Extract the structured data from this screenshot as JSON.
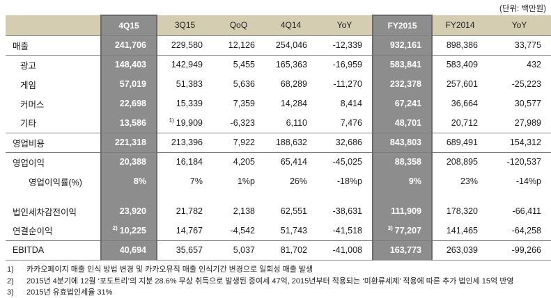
{
  "unit_label": "(단위: 백만원)",
  "colors": {
    "header_bg": "#d5cdb2",
    "highlight_bg": "#8d8d8d",
    "highlight_border": "#6a6a6a",
    "line": "#7f7f7f",
    "text": "#1a1a1a"
  },
  "table": {
    "columns": [
      {
        "label": "",
        "highlight": false
      },
      {
        "label": "4Q15",
        "highlight": true
      },
      {
        "label": "3Q15",
        "highlight": false
      },
      {
        "label": "QoQ",
        "highlight": false
      },
      {
        "label": "4Q14",
        "highlight": false
      },
      {
        "label": "YoY",
        "highlight": false
      },
      {
        "label": "FY2015",
        "highlight": true
      },
      {
        "label": "FY2014",
        "highlight": false
      },
      {
        "label": "YoY",
        "highlight": false
      }
    ],
    "rows": [
      {
        "label": "매출",
        "indent": 0,
        "bottom_border": true,
        "cells": [
          "241,706",
          "229,580",
          "12,126",
          "254,046",
          "-12,339",
          "932,161",
          "898,386",
          "33,775"
        ]
      },
      {
        "label": "광고",
        "indent": 1,
        "bottom_border": false,
        "cells": [
          "148,403",
          "142,949",
          "5,455",
          "165,363",
          "-16,959",
          "583,841",
          "583,409",
          "432"
        ]
      },
      {
        "label": "게임",
        "indent": 1,
        "bottom_border": false,
        "cells": [
          "57,019",
          "51,383",
          "5,636",
          "68,289",
          "-11,270",
          "232,378",
          "257,601",
          "-25,223"
        ]
      },
      {
        "label": "커머스",
        "indent": 1,
        "bottom_border": false,
        "cells": [
          "22,698",
          "15,339",
          "7,359",
          "14,284",
          "8,414",
          "67,241",
          "36,664",
          "30,577"
        ]
      },
      {
        "label": "기타",
        "indent": 1,
        "bottom_border": true,
        "cells": [
          "13,586",
          "19,909",
          "-6,323",
          "6,110",
          "7,476",
          "48,701",
          "20,712",
          "27,989"
        ],
        "sups": {
          "1": "1)"
        }
      },
      {
        "label": "영업비용",
        "indent": 0,
        "bottom_border": true,
        "cells": [
          "221,318",
          "213,396",
          "7,922",
          "188,632",
          "32,686",
          "843,803",
          "689,491",
          "154,312"
        ]
      },
      {
        "label": "영업이익",
        "indent": 0,
        "bottom_border": false,
        "cells": [
          "20,388",
          "16,184",
          "4,205",
          "65,414",
          "-45,025",
          "88,358",
          "208,895",
          "-120,537"
        ]
      },
      {
        "label": "영업이익률(%)",
        "indent": 2,
        "bottom_border": false,
        "cells": [
          "8%",
          "7%",
          "1%p",
          "26%",
          "-18%p",
          "9%",
          "23%",
          "-14%p"
        ]
      },
      {
        "spacer": true
      },
      {
        "label": "법인세차감전이익",
        "indent": 0,
        "bottom_border": false,
        "cells": [
          "23,920",
          "21,782",
          "2,138",
          "62,551",
          "-38,631",
          "111,909",
          "178,320",
          "-66,411"
        ]
      },
      {
        "label": "연결순이익",
        "indent": 0,
        "bottom_border": true,
        "cells": [
          "10,225",
          "14,767",
          "-4,542",
          "51,743",
          "-41,518",
          "77,207",
          "141,465",
          "-64,258"
        ],
        "sups": {
          "0": "2)",
          "5": "3)"
        }
      },
      {
        "label": "EBITDA",
        "indent": 0,
        "bottom_border": true,
        "cells": [
          "40,694",
          "35,657",
          "5,037",
          "81,702",
          "-41,008",
          "163,773",
          "263,039",
          "-99,266"
        ]
      }
    ]
  },
  "footnotes": [
    {
      "num": "1)",
      "text": "카카오페이지 매출 인식 방법 변경 및 카카오뮤직 매출 인식기간 변경으로 일회성 매출 발생"
    },
    {
      "num": "2)",
      "text": "2015년 4분기에 12월 ‘포도트리’의 지분 28.6% 무상 취득으로 발생된 증여세 47억, 2015년부터 적용되는 ‘미환류세제’ 적용에 따른 추가 법인세 15억 반영"
    },
    {
      "num": "3)",
      "text": "2015년 유효법인세율 31%"
    }
  ]
}
